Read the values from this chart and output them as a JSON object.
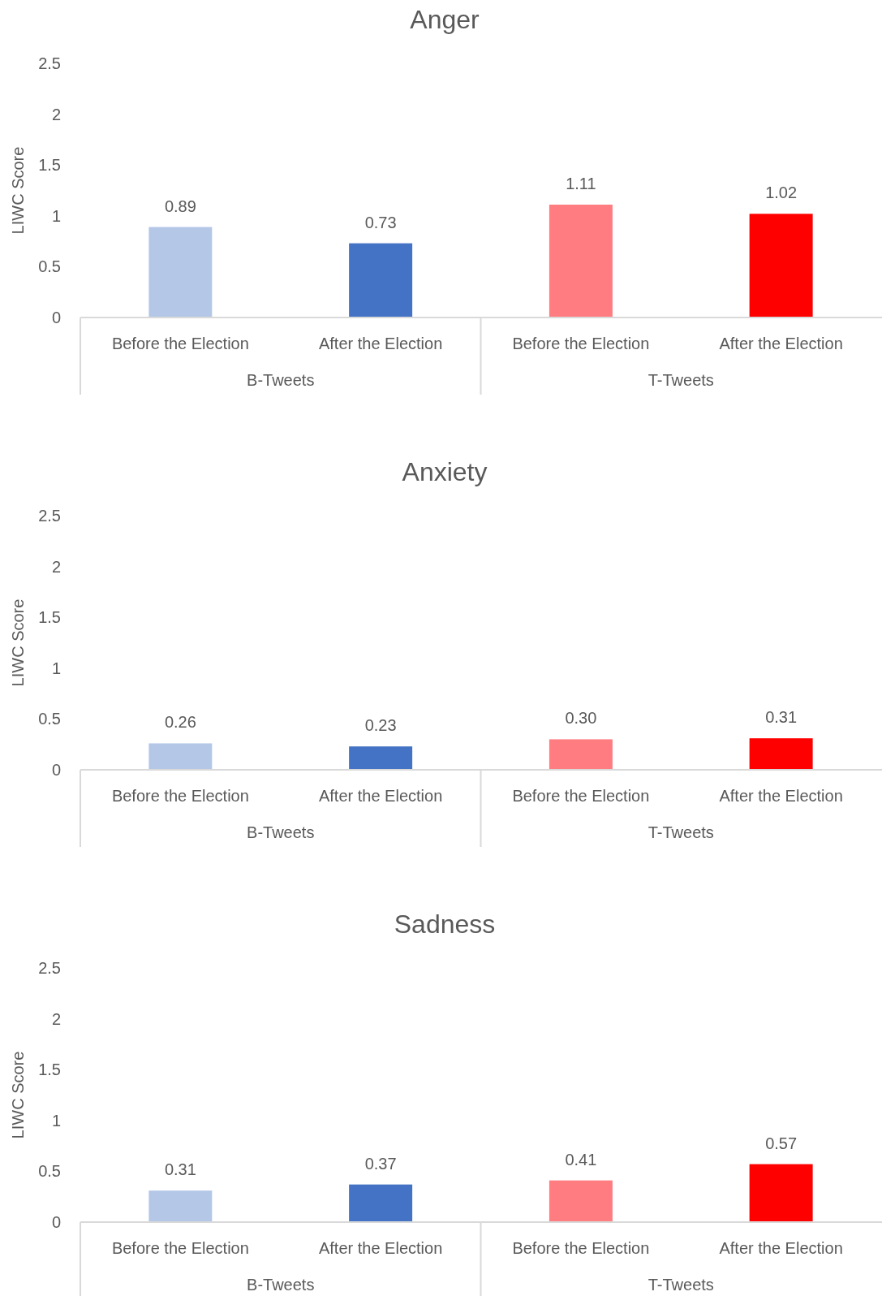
{
  "chart_data": [
    {
      "type": "bar",
      "title": "Anger",
      "ylabel": "LIWC Score",
      "categories": [
        "Before the Election",
        "After the Election",
        "Before the Election",
        "After the Election"
      ],
      "values": [
        0.89,
        0.73,
        1.11,
        1.02
      ],
      "value_labels": [
        "0.89",
        "0.73",
        "1.11",
        "1.02"
      ],
      "colors": [
        "#b4c7e7",
        "#4472c4",
        "#ff7c80",
        "#ff0000"
      ],
      "ylim": [
        0,
        2.5
      ],
      "yticks": [
        0,
        0.5,
        1,
        1.5,
        2,
        2.5
      ],
      "annotations": [
        "B-Tweets",
        "T-Tweets"
      ]
    },
    {
      "type": "bar",
      "title": "Anxiety",
      "ylabel": "LIWC Score",
      "categories": [
        "Before the Election",
        "After the Election",
        "Before the Election",
        "After the Election"
      ],
      "values": [
        0.26,
        0.23,
        0.3,
        0.31
      ],
      "value_labels": [
        "0.26",
        "0.23",
        "0.30",
        "0.31"
      ],
      "colors": [
        "#b4c7e7",
        "#4472c4",
        "#ff7c80",
        "#ff0000"
      ],
      "ylim": [
        0,
        2.5
      ],
      "yticks": [
        0,
        0.5,
        1,
        1.5,
        2,
        2.5
      ],
      "annotations": [
        "B-Tweets",
        "T-Tweets"
      ]
    },
    {
      "type": "bar",
      "title": "Sadness",
      "ylabel": "LIWC Score",
      "categories": [
        "Before the Election",
        "After the Election",
        "Before the Election",
        "After the Election"
      ],
      "values": [
        0.31,
        0.37,
        0.41,
        0.57
      ],
      "value_labels": [
        "0.31",
        "0.37",
        "0.41",
        "0.57"
      ],
      "colors": [
        "#b4c7e7",
        "#4472c4",
        "#ff7c80",
        "#ff0000"
      ],
      "ylim": [
        0,
        2.5
      ],
      "yticks": [
        0,
        0.5,
        1,
        1.5,
        2,
        2.5
      ],
      "annotations": [
        "B-Tweets",
        "T-Tweets"
      ]
    }
  ]
}
